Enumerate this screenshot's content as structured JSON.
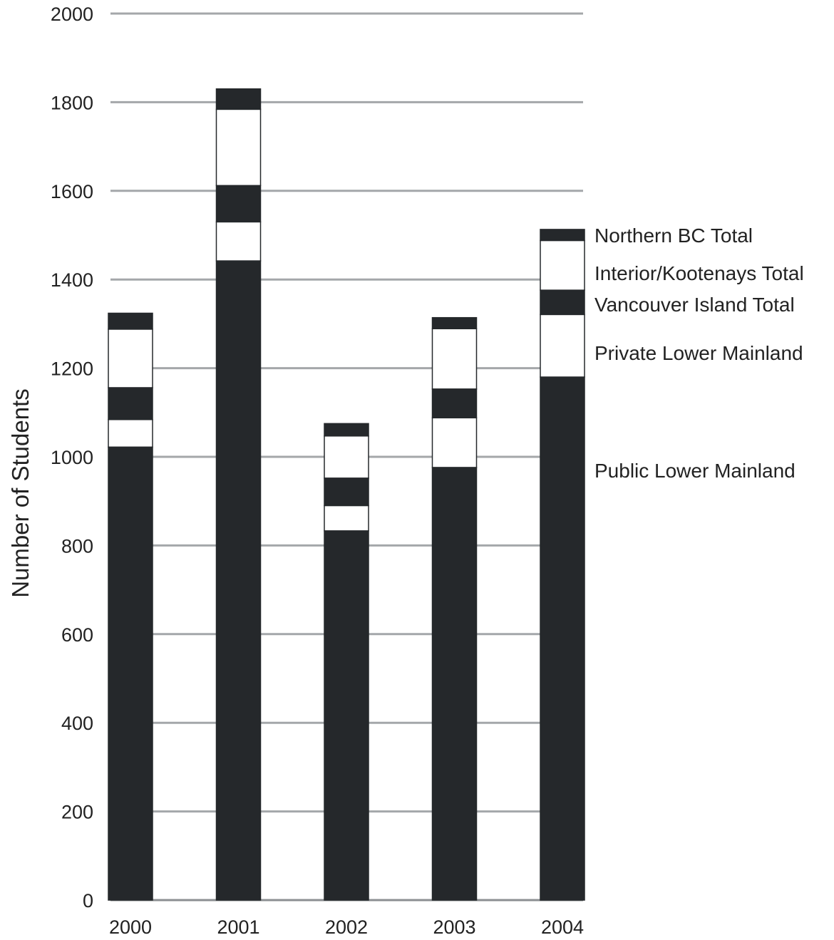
{
  "chart_data": {
    "type": "bar",
    "stacked": true,
    "title": "",
    "xlabel": "",
    "ylabel": "Number of Students",
    "ylim": [
      0,
      2000
    ],
    "yticks": [
      0,
      200,
      400,
      600,
      800,
      1000,
      1200,
      1400,
      1600,
      1800,
      2000
    ],
    "grid": true,
    "legend_placement": "right",
    "categories": [
      "2000",
      "2001",
      "2002",
      "2003",
      "2004"
    ],
    "series": [
      {
        "name": "Public Lower Mainland",
        "color": "#25282b",
        "values": [
          1022,
          1442,
          833,
          976,
          1180
        ]
      },
      {
        "name": "Private Lower Mainland",
        "color": "#ffffff",
        "values": [
          62,
          88,
          57,
          112,
          141
        ]
      },
      {
        "name": "Vancouver Island Total",
        "color": "#25282b",
        "values": [
          72,
          82,
          62,
          65,
          55
        ]
      },
      {
        "name": "Interior/Kootenays Total",
        "color": "#ffffff",
        "values": [
          132,
          172,
          95,
          136,
          112
        ]
      },
      {
        "name": "Northern BC Total",
        "color": "#25282b",
        "values": [
          36,
          46,
          28,
          25,
          25
        ]
      }
    ],
    "colors": {
      "dark": "#25282b",
      "light": "#ffffff",
      "grid": "#a4a7aa",
      "text": "#222222"
    }
  }
}
